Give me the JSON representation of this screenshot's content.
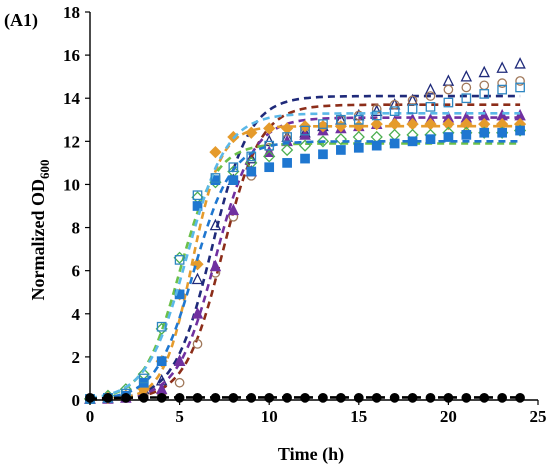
{
  "panel_label": "(A1)",
  "chart_data": {
    "type": "scatter",
    "title": "",
    "xlabel": "Time (h)",
    "ylabel_main": "Normalized OD",
    "ylabel_sub": "600",
    "xlim": [
      0,
      25
    ],
    "ylim": [
      0,
      18
    ],
    "x_ticks": [
      0,
      5,
      10,
      15,
      20,
      25
    ],
    "y_ticks": [
      0,
      2,
      4,
      6,
      8,
      10,
      12,
      14,
      16,
      18
    ],
    "grid": false,
    "legend": "none",
    "series": [
      {
        "color": "#1f2a7a",
        "marker": "triangle-open",
        "fit_color": "#1f2a7a",
        "points": [
          [
            0,
            0.05
          ],
          [
            1,
            0.1
          ],
          [
            2,
            0.2
          ],
          [
            3,
            0.5
          ],
          [
            4,
            0.9
          ],
          [
            5,
            1.8
          ],
          [
            6,
            5.6
          ],
          [
            7,
            8.1
          ],
          [
            8,
            10.2
          ],
          [
            9,
            11.2
          ],
          [
            10,
            12.0
          ],
          [
            11,
            12.2
          ],
          [
            12,
            12.4
          ],
          [
            13,
            12.7
          ],
          [
            14,
            13.0
          ],
          [
            15,
            13.2
          ],
          [
            16,
            13.4
          ],
          [
            17,
            13.7
          ],
          [
            18,
            13.9
          ],
          [
            19,
            14.4
          ],
          [
            20,
            14.8
          ],
          [
            21,
            15.0
          ],
          [
            22,
            15.2
          ],
          [
            23,
            15.4
          ],
          [
            24,
            15.6
          ]
        ],
        "fit": {
          "A": 14.1,
          "k": 0.95,
          "t0": 6.8
        }
      },
      {
        "color": "#a0785a",
        "marker": "circle-open",
        "fit_color": "#8c2d19",
        "points": [
          [
            0,
            0.05
          ],
          [
            1,
            0.05
          ],
          [
            2,
            0.1
          ],
          [
            3,
            0.2
          ],
          [
            4,
            0.3
          ],
          [
            5,
            0.8
          ],
          [
            6,
            2.6
          ],
          [
            7,
            5.9
          ],
          [
            8,
            8.5
          ],
          [
            9,
            10.4
          ],
          [
            10,
            11.7
          ],
          [
            11,
            12.1
          ],
          [
            12,
            12.4
          ],
          [
            13,
            12.7
          ],
          [
            14,
            13.0
          ],
          [
            15,
            13.2
          ],
          [
            16,
            13.5
          ],
          [
            17,
            13.7
          ],
          [
            18,
            13.9
          ],
          [
            19,
            14.1
          ],
          [
            20,
            14.4
          ],
          [
            21,
            14.5
          ],
          [
            22,
            14.6
          ],
          [
            23,
            14.7
          ],
          [
            24,
            14.8
          ]
        ],
        "fit": {
          "A": 13.7,
          "k": 0.95,
          "t0": 7.4
        }
      },
      {
        "color": "#7030a0",
        "marker": "triangle-filled",
        "fit_color": "#7030a0",
        "points": [
          [
            0,
            0.05
          ],
          [
            1,
            0.05
          ],
          [
            2,
            0.1
          ],
          [
            3,
            0.2
          ],
          [
            4,
            0.5
          ],
          [
            5,
            1.8
          ],
          [
            6,
            4.0
          ],
          [
            7,
            6.2
          ],
          [
            8,
            8.8
          ],
          [
            9,
            10.6
          ],
          [
            10,
            11.5
          ],
          [
            11,
            12.0
          ],
          [
            12,
            12.3
          ],
          [
            13,
            12.5
          ],
          [
            14,
            12.6
          ],
          [
            15,
            12.7
          ],
          [
            16,
            12.8
          ],
          [
            17,
            12.9
          ],
          [
            18,
            13.0
          ],
          [
            19,
            13.0
          ],
          [
            20,
            13.1
          ],
          [
            21,
            13.1
          ],
          [
            22,
            13.2
          ],
          [
            23,
            13.2
          ],
          [
            24,
            13.2
          ]
        ],
        "fit": {
          "A": 13.1,
          "k": 0.95,
          "t0": 7.0
        }
      },
      {
        "color": "#e59b2c",
        "marker": "diamond-filled",
        "fit_color": "#e59b2c",
        "points": [
          [
            0,
            0.05
          ],
          [
            1,
            0.1
          ],
          [
            2,
            0.2
          ],
          [
            3,
            0.5
          ],
          [
            4,
            1.8
          ],
          [
            5,
            4.9
          ],
          [
            6,
            6.3
          ],
          [
            7,
            11.5
          ],
          [
            8,
            12.2
          ],
          [
            9,
            12.4
          ],
          [
            10,
            12.6
          ],
          [
            11,
            12.6
          ],
          [
            12,
            12.7
          ],
          [
            13,
            12.7
          ],
          [
            14,
            12.7
          ],
          [
            15,
            12.7
          ],
          [
            16,
            12.8
          ],
          [
            17,
            12.8
          ],
          [
            18,
            12.8
          ],
          [
            19,
            12.8
          ],
          [
            20,
            12.8
          ],
          [
            21,
            12.8
          ],
          [
            22,
            12.8
          ],
          [
            23,
            12.8
          ],
          [
            24,
            12.8
          ]
        ],
        "fit": {
          "A": 12.7,
          "k": 1.25,
          "t0": 5.7
        }
      },
      {
        "color": "#4caf50",
        "marker": "diamond-open",
        "fit_color": "#6cc04a",
        "points": [
          [
            0,
            0.05
          ],
          [
            1,
            0.2
          ],
          [
            2,
            0.5
          ],
          [
            3,
            1.2
          ],
          [
            4,
            3.3
          ],
          [
            5,
            6.6
          ],
          [
            6,
            9.4
          ],
          [
            7,
            10.1
          ],
          [
            8,
            10.6
          ],
          [
            9,
            11.0
          ],
          [
            10,
            11.3
          ],
          [
            11,
            11.6
          ],
          [
            12,
            11.8
          ],
          [
            13,
            12.0
          ],
          [
            14,
            12.1
          ],
          [
            15,
            12.2
          ],
          [
            16,
            12.2
          ],
          [
            17,
            12.3
          ],
          [
            18,
            12.3
          ],
          [
            19,
            12.3
          ],
          [
            20,
            12.4
          ],
          [
            21,
            12.4
          ],
          [
            22,
            12.4
          ],
          [
            23,
            12.4
          ],
          [
            24,
            12.5
          ]
        ],
        "fit": {
          "A": 11.9,
          "k": 1.0,
          "t0": 5.0
        }
      },
      {
        "color": "#1f77d0",
        "marker": "square-filled",
        "fit_color": "#1f77d0",
        "points": [
          [
            0,
            0.05
          ],
          [
            1,
            0.1
          ],
          [
            2,
            0.2
          ],
          [
            3,
            0.8
          ],
          [
            4,
            1.8
          ],
          [
            5,
            4.9
          ],
          [
            6,
            9.0
          ],
          [
            7,
            10.2
          ],
          [
            8,
            10.2
          ],
          [
            9,
            10.6
          ],
          [
            10,
            10.8
          ],
          [
            11,
            11.0
          ],
          [
            12,
            11.2
          ],
          [
            13,
            11.4
          ],
          [
            14,
            11.6
          ],
          [
            15,
            11.7
          ],
          [
            16,
            11.8
          ],
          [
            17,
            11.9
          ],
          [
            18,
            12.0
          ],
          [
            19,
            12.1
          ],
          [
            20,
            12.2
          ],
          [
            21,
            12.3
          ],
          [
            22,
            12.4
          ],
          [
            23,
            12.4
          ],
          [
            24,
            12.5
          ]
        ],
        "fit": {
          "A": 12.0,
          "k": 0.95,
          "t0": 5.8
        }
      },
      {
        "color": "#2e86c1",
        "marker": "square-open",
        "fit_color": "#5bb8e8",
        "points": [
          [
            0,
            0.05
          ],
          [
            1,
            0.1
          ],
          [
            2,
            0.3
          ],
          [
            3,
            1.0
          ],
          [
            4,
            3.4
          ],
          [
            5,
            6.5
          ],
          [
            6,
            9.5
          ],
          [
            7,
            10.3
          ],
          [
            8,
            10.8
          ],
          [
            9,
            11.3
          ],
          [
            10,
            11.8
          ],
          [
            11,
            12.2
          ],
          [
            12,
            12.5
          ],
          [
            13,
            12.8
          ],
          [
            14,
            13.0
          ],
          [
            15,
            13.0
          ],
          [
            16,
            13.2
          ],
          [
            17,
            13.4
          ],
          [
            18,
            13.5
          ],
          [
            19,
            13.6
          ],
          [
            20,
            13.8
          ],
          [
            21,
            14.0
          ],
          [
            22,
            14.2
          ],
          [
            23,
            14.4
          ],
          [
            24,
            14.5
          ]
        ],
        "fit": {
          "A": 13.3,
          "k": 0.9,
          "t0": 5.4
        }
      },
      {
        "color": "#000000",
        "marker": "circle-filled",
        "fit_color": "#000000",
        "points": [
          [
            0,
            0.1
          ],
          [
            1,
            0.1
          ],
          [
            2,
            0.1
          ],
          [
            3,
            0.1
          ],
          [
            4,
            0.1
          ],
          [
            5,
            0.1
          ],
          [
            6,
            0.1
          ],
          [
            7,
            0.1
          ],
          [
            8,
            0.1
          ],
          [
            9,
            0.1
          ],
          [
            10,
            0.1
          ],
          [
            11,
            0.1
          ],
          [
            12,
            0.1
          ],
          [
            13,
            0.1
          ],
          [
            14,
            0.1
          ],
          [
            15,
            0.1
          ],
          [
            16,
            0.1
          ],
          [
            17,
            0.1
          ],
          [
            18,
            0.1
          ],
          [
            19,
            0.1
          ],
          [
            20,
            0.1
          ],
          [
            21,
            0.1
          ],
          [
            22,
            0.1
          ],
          [
            23,
            0.1
          ],
          [
            24,
            0.1
          ]
        ],
        "fit": {
          "A": 0.12,
          "k": 1.0,
          "t0": 0
        }
      }
    ]
  }
}
